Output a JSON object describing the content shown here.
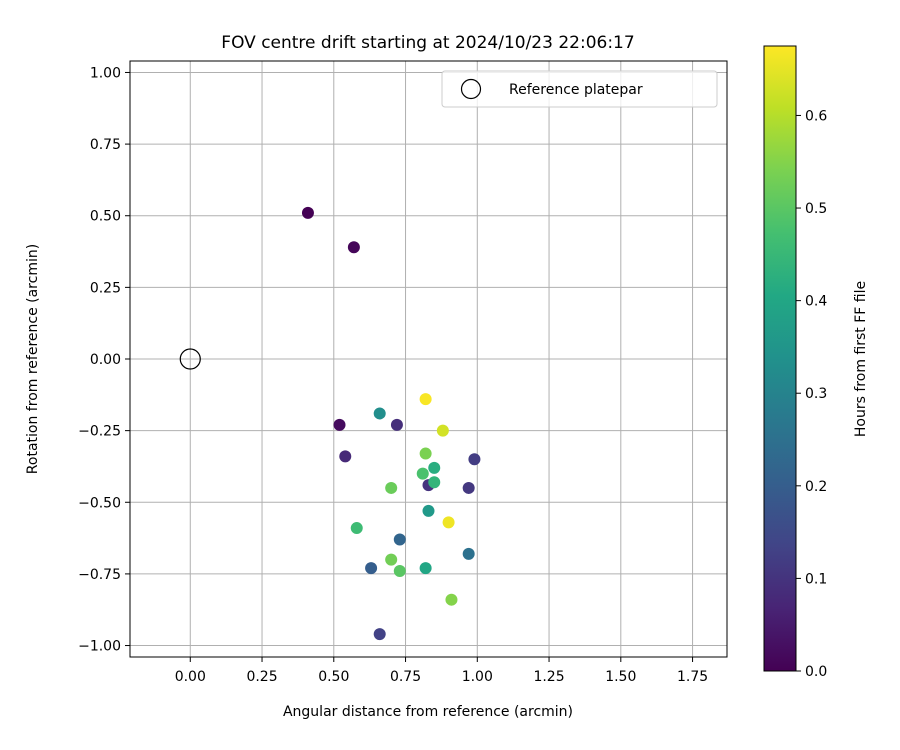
{
  "chart_data": {
    "type": "scatter",
    "title": "FOV centre drift starting at 2024/10/23 22:06:17",
    "xlabel": "Angular distance from reference (arcmin)",
    "ylabel": "Rotation from reference (arcmin)",
    "xlim": [
      -0.21,
      1.87
    ],
    "ylim": [
      -1.04,
      1.04
    ],
    "xticks": [
      0.0,
      0.25,
      0.5,
      0.75,
      1.0,
      1.25,
      1.5,
      1.75
    ],
    "xtick_labels": [
      "0.00",
      "0.25",
      "0.50",
      "0.75",
      "1.00",
      "1.25",
      "1.50",
      "1.75"
    ],
    "yticks": [
      1.0,
      0.75,
      0.5,
      0.25,
      0.0,
      -0.25,
      -0.5,
      -0.75,
      -1.0
    ],
    "ytick_labels": [
      "1.00",
      "0.75",
      "0.50",
      "0.25",
      "0.00",
      "−0.25",
      "−0.50",
      "−0.75",
      "−1.00"
    ],
    "grid": true,
    "legend": {
      "position": "top-right",
      "entries": [
        "Reference platepar"
      ]
    },
    "reference_point": {
      "x": 0.0,
      "y": 0.0,
      "marker": "open-circle"
    },
    "colorbar": {
      "label": "Hours from first FF file",
      "colormap": "viridis",
      "range": [
        0.0,
        0.675
      ],
      "ticks": [
        0.0,
        0.1,
        0.2,
        0.3,
        0.4,
        0.5,
        0.6
      ],
      "tick_labels": [
        "0.0",
        "0.1",
        "0.2",
        "0.3",
        "0.4",
        "0.5",
        "0.6"
      ]
    },
    "points": [
      {
        "x": 0.41,
        "y": 0.51,
        "hours": 0.0
      },
      {
        "x": 0.57,
        "y": 0.39,
        "hours": 0.01
      },
      {
        "x": 0.52,
        "y": -0.23,
        "hours": 0.02
      },
      {
        "x": 0.54,
        "y": -0.34,
        "hours": 0.08
      },
      {
        "x": 0.72,
        "y": -0.23,
        "hours": 0.09
      },
      {
        "x": 0.83,
        "y": -0.44,
        "hours": 0.1
      },
      {
        "x": 0.97,
        "y": -0.45,
        "hours": 0.11
      },
      {
        "x": 0.99,
        "y": -0.35,
        "hours": 0.12
      },
      {
        "x": 0.66,
        "y": -0.96,
        "hours": 0.13
      },
      {
        "x": 0.63,
        "y": -0.73,
        "hours": 0.2
      },
      {
        "x": 0.73,
        "y": -0.63,
        "hours": 0.22
      },
      {
        "x": 0.97,
        "y": -0.68,
        "hours": 0.25
      },
      {
        "x": 0.66,
        "y": -0.19,
        "hours": 0.33
      },
      {
        "x": 0.83,
        "y": -0.53,
        "hours": 0.36
      },
      {
        "x": 0.82,
        "y": -0.73,
        "hours": 0.4
      },
      {
        "x": 0.85,
        "y": -0.38,
        "hours": 0.42
      },
      {
        "x": 0.85,
        "y": -0.43,
        "hours": 0.44
      },
      {
        "x": 0.58,
        "y": -0.59,
        "hours": 0.46
      },
      {
        "x": 0.81,
        "y": -0.4,
        "hours": 0.48
      },
      {
        "x": 0.73,
        "y": -0.74,
        "hours": 0.5
      },
      {
        "x": 0.7,
        "y": -0.45,
        "hours": 0.52
      },
      {
        "x": 0.7,
        "y": -0.7,
        "hours": 0.53
      },
      {
        "x": 0.82,
        "y": -0.33,
        "hours": 0.54
      },
      {
        "x": 0.91,
        "y": -0.84,
        "hours": 0.55
      },
      {
        "x": 0.88,
        "y": -0.25,
        "hours": 0.63
      },
      {
        "x": 0.82,
        "y": -0.14,
        "hours": 0.67
      },
      {
        "x": 0.9,
        "y": -0.57,
        "hours": 0.66
      }
    ]
  }
}
